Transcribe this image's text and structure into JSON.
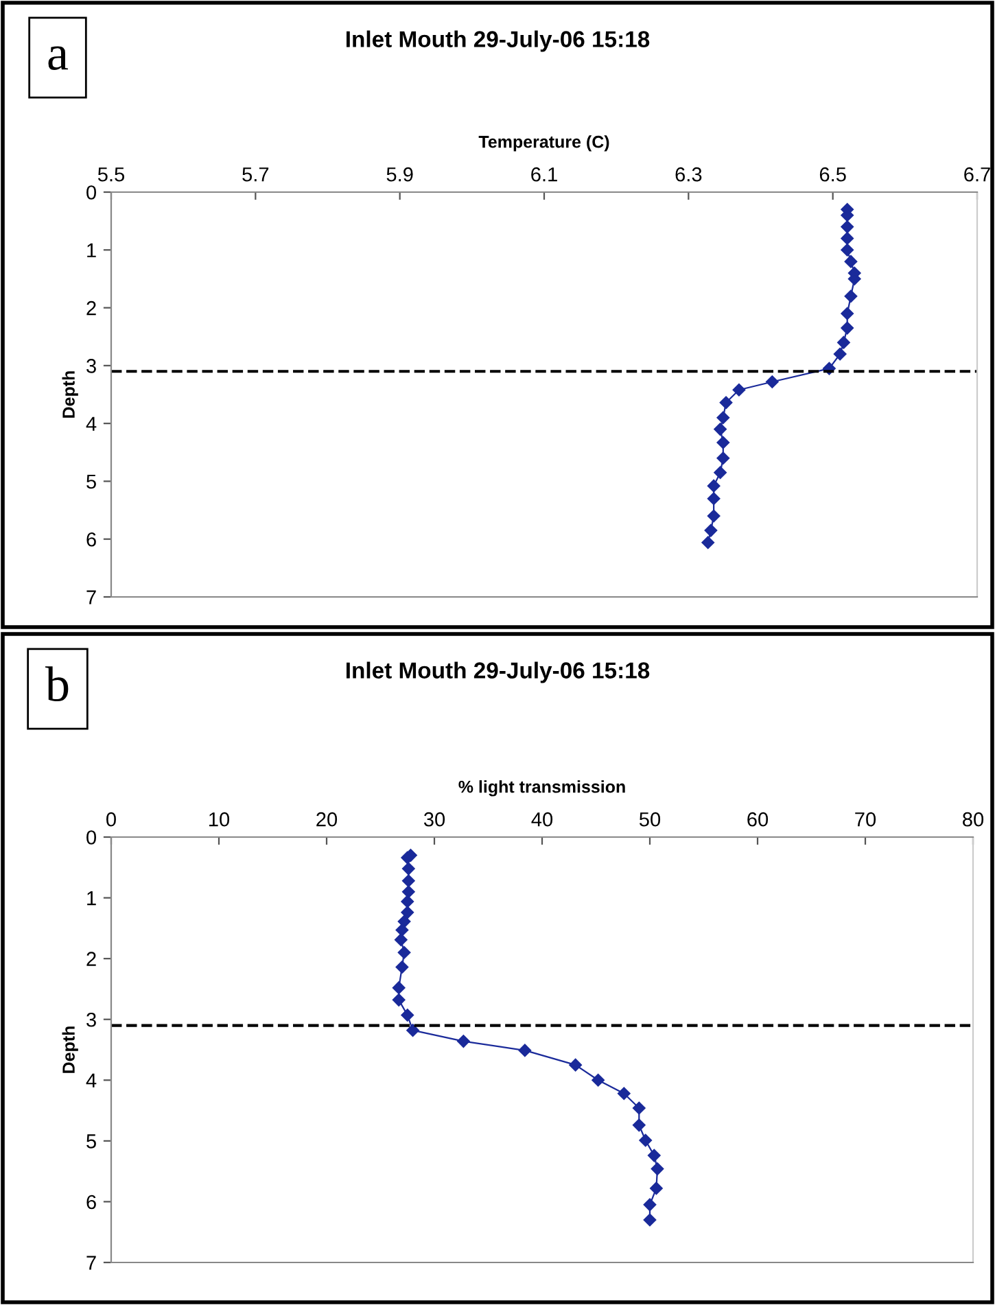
{
  "chart_data": [
    {
      "type": "line",
      "title": "Inlet Mouth 29-July-06 15:18",
      "xlabel": "Temperature (C)",
      "ylabel": "Depth",
      "annotations": [
        "a"
      ],
      "series": [
        {
          "color": "#1a2a9a",
          "x": [
            6.52,
            6.52,
            6.52,
            6.52,
            6.52,
            6.525,
            6.53,
            6.53,
            6.525,
            6.52,
            6.52,
            6.515,
            6.51,
            6.495,
            6.416,
            6.37,
            6.352,
            6.348,
            6.344,
            6.348,
            6.348,
            6.344,
            6.335,
            6.335,
            6.335,
            6.331,
            6.327
          ],
          "values": [
            0.3,
            0.4,
            0.6,
            0.8,
            1.0,
            1.2,
            1.4,
            1.5,
            1.8,
            2.1,
            2.35,
            2.6,
            2.8,
            3.05,
            3.28,
            3.42,
            3.64,
            3.9,
            4.1,
            4.33,
            4.6,
            4.85,
            5.08,
            5.3,
            5.6,
            5.85,
            6.06
          ]
        }
      ],
      "xlim": [
        5.5,
        6.7
      ],
      "xticks": [
        5.5,
        5.7,
        5.9,
        6.1,
        6.3,
        6.5,
        6.7
      ],
      "ylim": [
        7,
        0
      ],
      "yticks": [
        0,
        1,
        2,
        3,
        4,
        5,
        6,
        7
      ],
      "marker": "diamond",
      "line_style": "solid",
      "grid": false,
      "legend": false,
      "ref_lines": [
        {
          "axis": "y",
          "value": 3.1,
          "color": "#000000",
          "line_style": "dashed"
        }
      ]
    },
    {
      "type": "line",
      "title": "Inlet Mouth 29-July-06 15:18",
      "xlabel": "% light transmission",
      "ylabel": "Depth",
      "annotations": [
        "b"
      ],
      "series": [
        {
          "color": "#1a2a9a",
          "x": [
            27.8,
            27.5,
            27.6,
            27.6,
            27.6,
            27.5,
            27.5,
            27.2,
            27.0,
            26.9,
            27.2,
            27.0,
            26.7,
            26.7,
            27.5,
            28.0,
            32.7,
            38.4,
            43.1,
            45.2,
            47.6,
            49.0,
            49.0,
            49.6,
            50.4,
            50.7,
            50.6,
            50.0,
            50.0
          ],
          "values": [
            0.3,
            0.34,
            0.52,
            0.72,
            0.9,
            1.06,
            1.24,
            1.39,
            1.53,
            1.69,
            1.9,
            2.14,
            2.48,
            2.68,
            2.93,
            3.18,
            3.36,
            3.51,
            3.75,
            4.0,
            4.22,
            4.46,
            4.74,
            4.99,
            5.24,
            5.46,
            5.78,
            6.05,
            6.3
          ]
        }
      ],
      "xlim": [
        0,
        80
      ],
      "xticks": [
        0,
        10,
        20,
        30,
        40,
        50,
        60,
        70,
        80
      ],
      "ylim": [
        7,
        0
      ],
      "yticks": [
        0,
        1,
        2,
        3,
        4,
        5,
        6,
        7
      ],
      "marker": "diamond",
      "line_style": "solid",
      "grid": false,
      "legend": false,
      "ref_lines": [
        {
          "axis": "y",
          "value": 3.1,
          "color": "#000000",
          "line_style": "dashed"
        }
      ]
    }
  ]
}
